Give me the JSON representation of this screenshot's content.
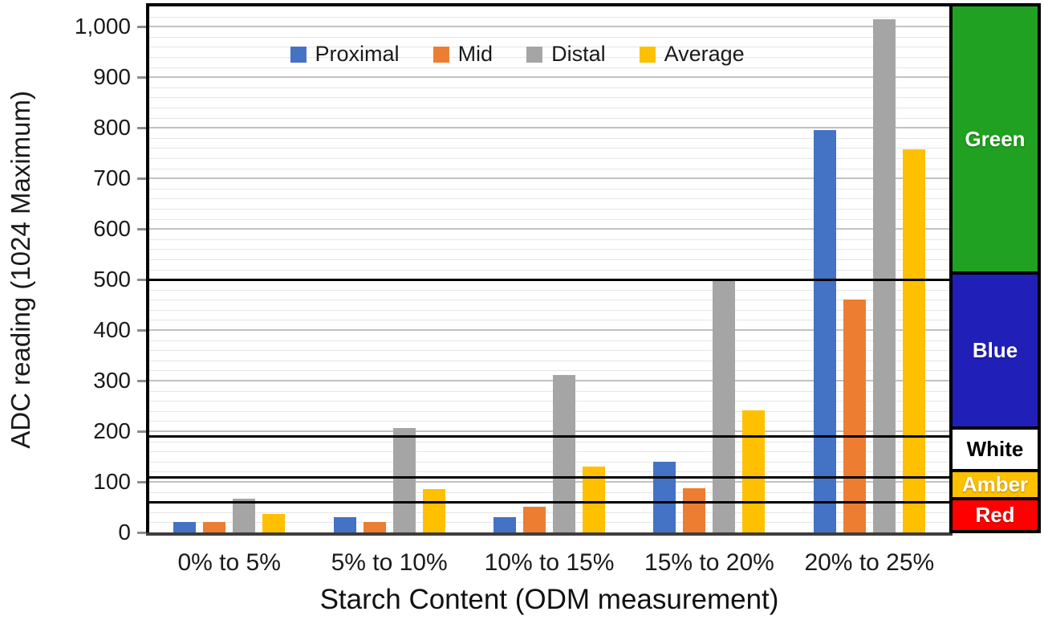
{
  "chart_data": {
    "type": "bar",
    "title": "",
    "xlabel": "Starch Content (ODM measurement)",
    "ylabel": "ADC reading (1024 Maximum)",
    "categories": [
      "0% to 5%",
      "5% to 10%",
      "10% to 15%",
      "15% to 20%",
      "20% to 25%"
    ],
    "series": [
      {
        "name": "Proximal",
        "color": "#4472C4",
        "values": [
          20,
          30,
          30,
          139,
          795
        ]
      },
      {
        "name": "Mid",
        "color": "#ED7D31",
        "values": [
          20,
          20,
          51,
          87,
          460
        ]
      },
      {
        "name": "Distal",
        "color": "#A5A5A5",
        "values": [
          67,
          206,
          312,
          500,
          1015
        ]
      },
      {
        "name": "Average",
        "color": "#FFC000",
        "values": [
          36,
          85,
          131,
          242,
          757
        ]
      }
    ],
    "ylim": [
      0,
      1040
    ],
    "y_ticks": [
      0,
      100,
      200,
      300,
      400,
      500,
      600,
      700,
      800,
      900,
      1000
    ],
    "y_tick_labels": [
      "0",
      "100",
      "200",
      "300",
      "400",
      "500",
      "600",
      "700",
      "800",
      "900",
      "1,000"
    ],
    "minor_grid_step": 20,
    "major_grid_step": 100,
    "grid": true,
    "legend_position": "top-center",
    "threshold_lines": [
      60,
      110,
      190,
      500
    ],
    "threshold_color": "#000000",
    "bands": [
      {
        "label": "Red",
        "from": 0,
        "to": 60,
        "color": "#FF0000",
        "text": "light"
      },
      {
        "label": "Amber",
        "from": 60,
        "to": 110,
        "color": "#FFC000",
        "text": "light"
      },
      {
        "label": "White",
        "from": 110,
        "to": 190,
        "color": "#FFFFFF",
        "text": "dark"
      },
      {
        "label": "Blue",
        "from": 190,
        "to": 500,
        "color": "#2020B8",
        "text": "light"
      },
      {
        "label": "Green",
        "from": 500,
        "to": 1040,
        "color": "#21A121",
        "text": "light"
      }
    ]
  }
}
